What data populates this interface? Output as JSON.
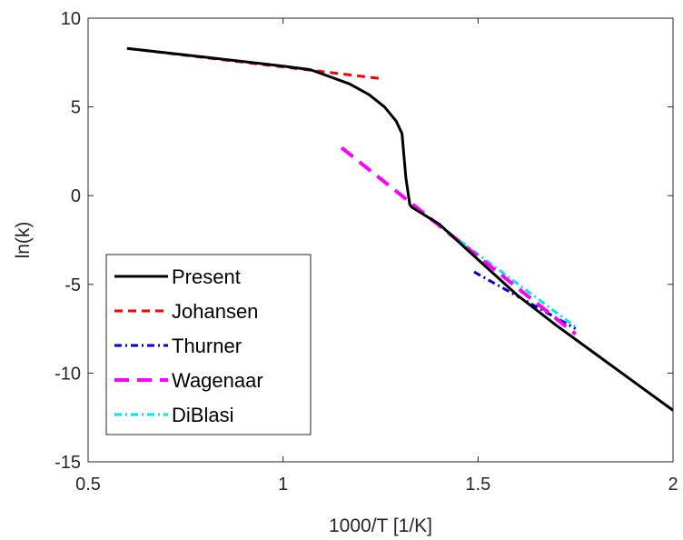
{
  "chart_data": {
    "type": "line",
    "title": "",
    "xlabel": "1000/T [1/K]",
    "ylabel": "ln(k)",
    "xlim": [
      0.5,
      2
    ],
    "ylim": [
      -15,
      10
    ],
    "xticks": [
      0.5,
      1,
      1.5,
      2
    ],
    "yticks": [
      -15,
      -10,
      -5,
      0,
      5,
      10
    ],
    "xtick_labels": [
      "0.5",
      "1",
      "1.5",
      "2"
    ],
    "ytick_labels": [
      "-15",
      "-10",
      "-5",
      "0",
      "5",
      "10"
    ],
    "grid": false,
    "legend_position": "bottom-left",
    "series": [
      {
        "name": "Present",
        "color": "#000000",
        "dash": "solid",
        "x": [
          0.6,
          0.8,
          1.0,
          1.07,
          1.12,
          1.17,
          1.22,
          1.26,
          1.29,
          1.305,
          1.315,
          1.325,
          1.33,
          1.4,
          1.5,
          1.6,
          1.7,
          1.8,
          1.9,
          2.0
        ],
        "y": [
          8.3,
          7.8,
          7.3,
          7.1,
          6.7,
          6.3,
          5.7,
          5.0,
          4.2,
          3.5,
          1.0,
          -0.5,
          -0.65,
          -1.6,
          -3.6,
          -5.6,
          -7.3,
          -8.9,
          -10.5,
          -12.1
        ]
      },
      {
        "name": "Johansen",
        "color": "#ff0000",
        "dash": "dash",
        "x": [
          0.6,
          1.25
        ],
        "y": [
          8.3,
          6.6
        ]
      },
      {
        "name": "Thurner",
        "color": "#0000cc",
        "dash": "dashdot",
        "x": [
          1.49,
          1.75
        ],
        "y": [
          -4.3,
          -7.5
        ]
      },
      {
        "name": "Wagenaar",
        "color": "#ff00ff",
        "dash": "longdash",
        "x": [
          1.15,
          1.75
        ],
        "y": [
          2.7,
          -7.8
        ]
      },
      {
        "name": "DiBlasi",
        "color": "#00e5ee",
        "dash": "dashdot",
        "x": [
          1.42,
          1.75
        ],
        "y": [
          -2.0,
          -7.4
        ]
      }
    ]
  }
}
